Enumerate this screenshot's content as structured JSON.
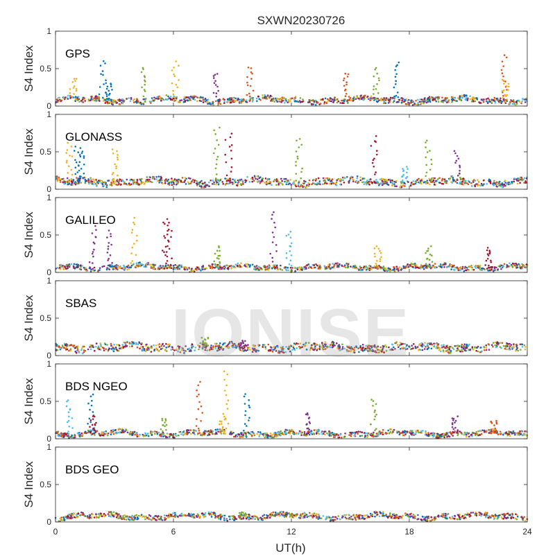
{
  "watermark": "IONISE",
  "chart_data": {
    "type": "scatter",
    "title": "SXWN20230726",
    "xlabel": "UT(h)",
    "xlim": [
      0,
      24
    ],
    "xticks": [
      0,
      6,
      12,
      18,
      24
    ],
    "xtick_labels": [
      "0",
      "6",
      "12",
      "18",
      "24"
    ],
    "grid": false,
    "legend": "none",
    "series_colors": [
      "#0072BD",
      "#D95319",
      "#EDB120",
      "#7E2F8E",
      "#77AC30",
      "#4DBEEE",
      "#A2142F"
    ],
    "panels": [
      {
        "label": "GPS",
        "ylabel": "S4 Index",
        "ylim": [
          0,
          1
        ],
        "yticks": [
          0,
          0.5,
          1
        ],
        "ytick_labels": [
          "0",
          "0.5",
          "1"
        ],
        "baseline": 0.08,
        "spikes": [
          [
            0.9,
            0.37,
            2
          ],
          [
            2.4,
            0.6,
            0
          ],
          [
            2.7,
            0.3,
            0
          ],
          [
            4.5,
            0.51,
            4
          ],
          [
            6.1,
            0.6,
            2
          ],
          [
            8.2,
            0.45,
            3
          ],
          [
            9.9,
            0.52,
            1
          ],
          [
            14.8,
            0.45,
            1
          ],
          [
            16.3,
            0.51,
            4
          ],
          [
            17.3,
            0.59,
            0
          ],
          [
            22.8,
            0.68,
            1
          ],
          [
            22.9,
            0.35,
            2
          ]
        ]
      },
      {
        "label": "GLONASS",
        "ylabel": "S4 Index",
        "ylim": [
          0,
          1
        ],
        "yticks": [
          0,
          0.5,
          1
        ],
        "ytick_labels": [
          "0",
          "0.5",
          "1"
        ],
        "baseline": 0.1,
        "spikes": [
          [
            0.7,
            0.62,
            2
          ],
          [
            1.1,
            0.57,
            0
          ],
          [
            1.3,
            0.55,
            0
          ],
          [
            3.0,
            0.55,
            2
          ],
          [
            8.2,
            0.83,
            4
          ],
          [
            8.8,
            0.76,
            6
          ],
          [
            12.4,
            0.68,
            4
          ],
          [
            16.2,
            0.71,
            6
          ],
          [
            17.8,
            0.3,
            5
          ],
          [
            19.0,
            0.65,
            4
          ],
          [
            20.4,
            0.52,
            3
          ]
        ]
      },
      {
        "label": "GALILEO",
        "ylabel": "S4 Index",
        "ylim": [
          0,
          1
        ],
        "yticks": [
          0,
          0.5,
          1
        ],
        "ytick_labels": [
          "0",
          "0.5",
          "1"
        ],
        "baseline": 0.07,
        "spikes": [
          [
            1.9,
            0.62,
            3
          ],
          [
            2.8,
            0.56,
            3
          ],
          [
            4.0,
            0.73,
            2
          ],
          [
            5.6,
            0.68,
            6
          ],
          [
            5.8,
            0.72,
            6
          ],
          [
            8.2,
            0.35,
            4
          ],
          [
            11.1,
            0.82,
            3
          ],
          [
            11.9,
            0.56,
            5
          ],
          [
            16.4,
            0.35,
            2
          ],
          [
            19.0,
            0.35,
            4
          ],
          [
            22.0,
            0.33,
            6
          ]
        ]
      },
      {
        "label": "SBAS",
        "ylabel": "S4 Index",
        "ylim": [
          0,
          1
        ],
        "yticks": [
          0,
          0.5,
          1
        ],
        "ytick_labels": [
          "0",
          "0.5",
          "1"
        ],
        "baseline": 0.11,
        "spikes": [
          [
            7.6,
            0.24,
            4
          ],
          [
            9.5,
            0.2,
            3
          ]
        ]
      },
      {
        "label": "BDS NGEO",
        "ylabel": "S4 Index",
        "ylim": [
          0,
          1
        ],
        "yticks": [
          0,
          0.5,
          1
        ],
        "ytick_labels": [
          "0",
          "0.5",
          "1"
        ],
        "baseline": 0.07,
        "spikes": [
          [
            0.7,
            0.52,
            5
          ],
          [
            1.8,
            0.6,
            0
          ],
          [
            1.9,
            0.3,
            6
          ],
          [
            5.5,
            0.28,
            4
          ],
          [
            7.3,
            0.76,
            1
          ],
          [
            8.5,
            0.3,
            2
          ],
          [
            8.7,
            0.92,
            2
          ],
          [
            9.7,
            0.61,
            0
          ],
          [
            12.8,
            0.35,
            3
          ],
          [
            16.2,
            0.53,
            4
          ],
          [
            20.3,
            0.3,
            3
          ],
          [
            22.3,
            0.25,
            1
          ]
        ]
      },
      {
        "label": "BDS GEO",
        "ylabel": "S4 Index",
        "ylim": [
          0,
          1
        ],
        "yticks": [
          0,
          0.5,
          1
        ],
        "ytick_labels": [
          "0",
          "0.5",
          "1"
        ],
        "baseline": 0.075,
        "spikes": [
          [
            9.5,
            0.13,
            4
          ]
        ]
      }
    ]
  }
}
